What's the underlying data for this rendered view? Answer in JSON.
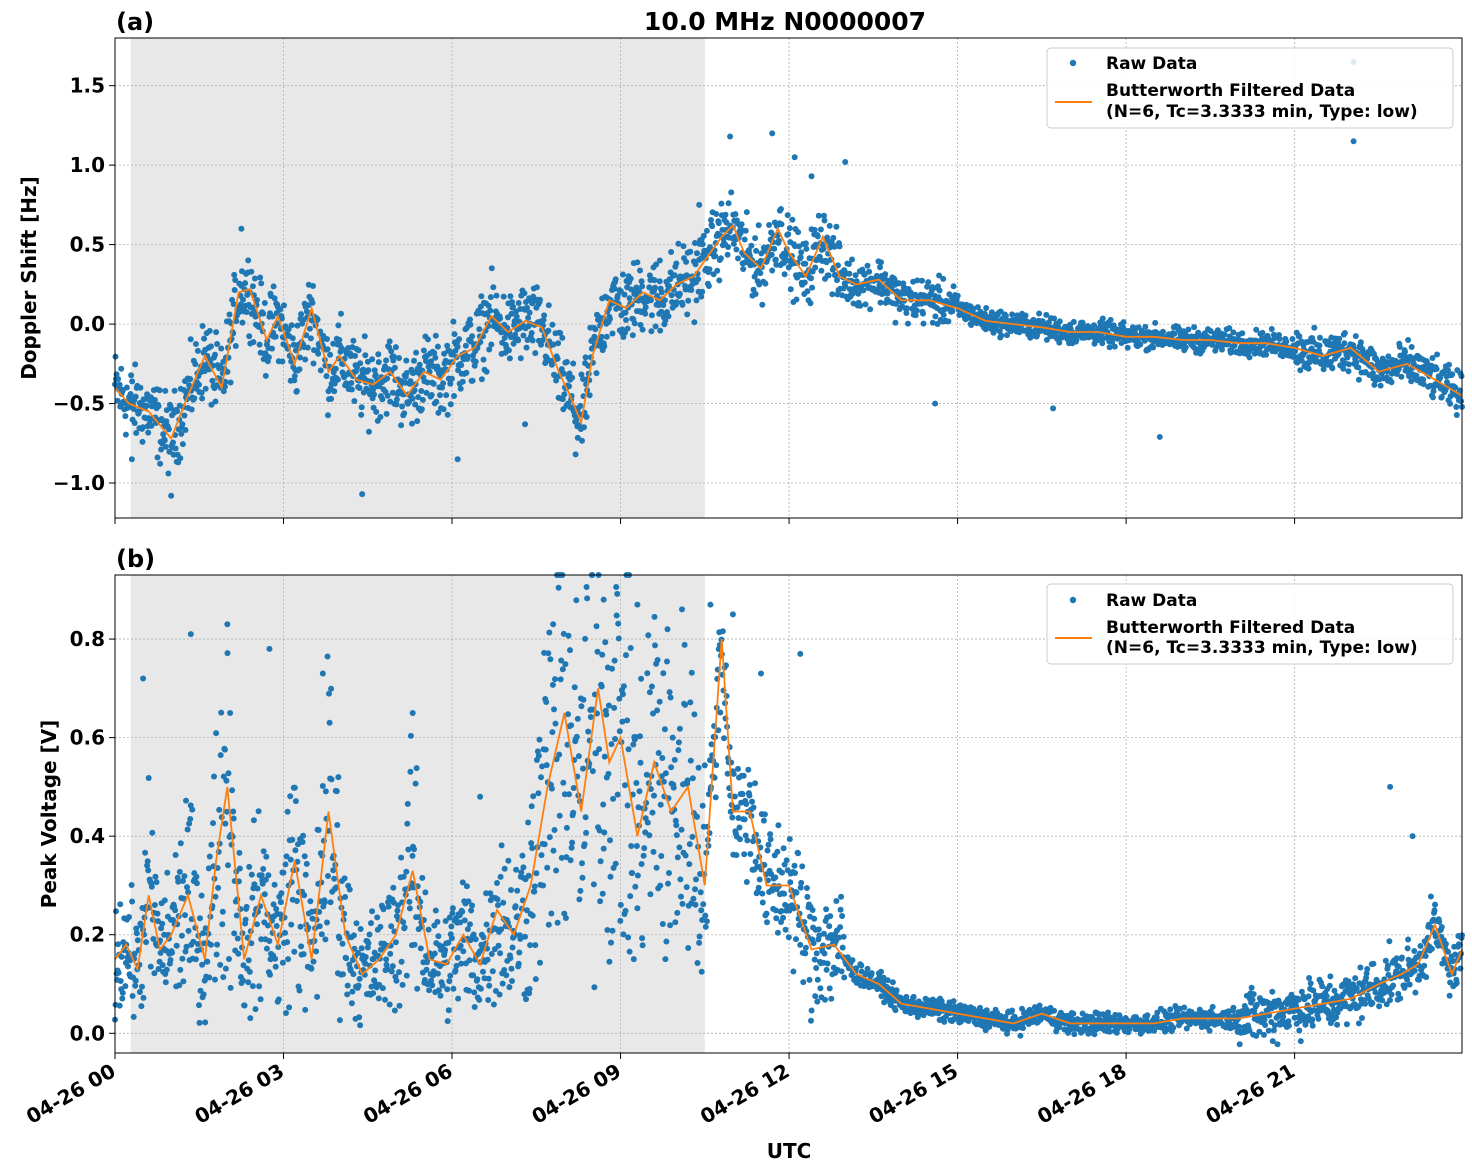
{
  "title": "10.0 MHz N0000007",
  "colors": {
    "raw": "#1f77b4",
    "filtered": "#ff7f0e",
    "night_shade": "#e8e8e8",
    "grid": "#b0b0b0"
  },
  "x_axis": {
    "label": "UTC",
    "range_hours": [
      0,
      23.98
    ],
    "ticks": [
      {
        "hour": 0,
        "label": "04-26 00"
      },
      {
        "hour": 3,
        "label": "04-26 03"
      },
      {
        "hour": 6,
        "label": "04-26 06"
      },
      {
        "hour": 9,
        "label": "04-26 09"
      },
      {
        "hour": 12,
        "label": "04-26 12"
      },
      {
        "hour": 15,
        "label": "04-26 15"
      },
      {
        "hour": 18,
        "label": "04-26 18"
      },
      {
        "hour": 21,
        "label": "04-26 21"
      }
    ]
  },
  "legend": {
    "raw": "Raw Data",
    "filtered_line1": "Butterworth Filtered Data",
    "filtered_line2": "(N=6, Tc=3.3333 min, Type: low)",
    "placement": "top-right"
  },
  "chart_data": [
    {
      "type": "scatter",
      "panel_label": "(a)",
      "ylabel": "Doppler Shift [Hz]",
      "ylim": [
        -1.22,
        1.8
      ],
      "yticks": [
        {
          "v": -1.0,
          "label": "−1.0"
        },
        {
          "v": -0.5,
          "label": "−0.5"
        },
        {
          "v": 0.0,
          "label": "0.0"
        },
        {
          "v": 0.5,
          "label": "0.5"
        },
        {
          "v": 1.0,
          "label": "1.0"
        },
        {
          "v": 1.5,
          "label": "1.5"
        }
      ],
      "shaded_region_hours": [
        0.28,
        10.5
      ],
      "grid": true,
      "series": [
        {
          "name": "Raw Data",
          "x": [
            0.3,
            1.0,
            2.25,
            4.4,
            6.1,
            7.3,
            8.2,
            9.7,
            10.4,
            10.95,
            11.7,
            12.1,
            12.4,
            13.0,
            14.6,
            16.7,
            18.6,
            22.05,
            22.05
          ],
          "y": [
            -0.85,
            -1.08,
            0.6,
            -1.07,
            -0.85,
            -0.63,
            -0.82,
            0.4,
            0.75,
            1.18,
            1.2,
            1.05,
            0.93,
            1.02,
            -0.5,
            -0.53,
            -0.71,
            1.65,
            1.15
          ]
        },
        {
          "name": "Butterworth Filtered Data",
          "x": [
            0.0,
            0.25,
            0.6,
            1.0,
            1.3,
            1.6,
            1.9,
            2.2,
            2.4,
            2.7,
            2.9,
            3.2,
            3.5,
            3.8,
            4.0,
            4.3,
            4.6,
            4.9,
            5.2,
            5.5,
            5.8,
            6.1,
            6.4,
            6.7,
            7.0,
            7.3,
            7.6,
            7.9,
            8.1,
            8.3,
            8.5,
            8.8,
            9.1,
            9.4,
            9.7,
            10.0,
            10.3,
            10.6,
            10.8,
            11.0,
            11.2,
            11.5,
            11.8,
            12.0,
            12.3,
            12.6,
            12.9,
            13.2,
            13.6,
            14.0,
            14.5,
            15.0,
            15.5,
            16.0,
            16.5,
            17.0,
            17.5,
            18.0,
            18.5,
            19.0,
            19.5,
            20.0,
            20.5,
            21.0,
            21.5,
            22.0,
            22.5,
            23.0,
            23.5,
            23.98
          ],
          "y": [
            -0.4,
            -0.5,
            -0.55,
            -0.72,
            -0.45,
            -0.2,
            -0.4,
            0.2,
            0.22,
            -0.1,
            0.05,
            -0.25,
            0.1,
            -0.3,
            -0.2,
            -0.35,
            -0.38,
            -0.3,
            -0.45,
            -0.3,
            -0.35,
            -0.2,
            -0.15,
            0.05,
            -0.05,
            0.02,
            -0.02,
            -0.3,
            -0.45,
            -0.62,
            -0.2,
            0.15,
            0.1,
            0.2,
            0.15,
            0.25,
            0.3,
            0.45,
            0.55,
            0.62,
            0.45,
            0.35,
            0.6,
            0.45,
            0.3,
            0.55,
            0.3,
            0.25,
            0.28,
            0.15,
            0.15,
            0.1,
            0.02,
            0.0,
            -0.02,
            -0.05,
            -0.05,
            -0.08,
            -0.08,
            -0.1,
            -0.1,
            -0.12,
            -0.12,
            -0.15,
            -0.2,
            -0.15,
            -0.3,
            -0.25,
            -0.35,
            -0.45
          ]
        }
      ]
    },
    {
      "type": "scatter",
      "panel_label": "(b)",
      "ylabel": "Peak Voltage [V]",
      "ylim": [
        -0.04,
        0.93
      ],
      "yticks": [
        {
          "v": 0.0,
          "label": "0.0"
        },
        {
          "v": 0.2,
          "label": "0.2"
        },
        {
          "v": 0.4,
          "label": "0.4"
        },
        {
          "v": 0.6,
          "label": "0.6"
        },
        {
          "v": 0.8,
          "label": "0.8"
        }
      ],
      "shaded_region_hours": [
        0.28,
        10.5
      ],
      "grid": true,
      "series": [
        {
          "name": "Raw Data",
          "x": [
            0.5,
            1.35,
            2.0,
            2.75,
            3.7,
            5.3,
            6.5,
            7.8,
            8.7,
            9.3,
            10.6,
            11.0,
            11.5,
            12.2,
            22.7,
            23.1
          ],
          "y": [
            0.72,
            0.81,
            0.83,
            0.78,
            0.73,
            0.65,
            0.48,
            0.83,
            0.88,
            0.87,
            0.87,
            0.85,
            0.73,
            0.77,
            0.5,
            0.4
          ]
        },
        {
          "name": "Butterworth Filtered Data",
          "x": [
            0.0,
            0.2,
            0.4,
            0.6,
            0.8,
            1.0,
            1.3,
            1.6,
            1.8,
            2.0,
            2.3,
            2.6,
            2.9,
            3.2,
            3.5,
            3.8,
            4.1,
            4.4,
            4.7,
            5.0,
            5.3,
            5.6,
            5.9,
            6.2,
            6.5,
            6.8,
            7.1,
            7.4,
            7.7,
            8.0,
            8.3,
            8.6,
            8.8,
            9.0,
            9.3,
            9.6,
            9.9,
            10.2,
            10.5,
            10.8,
            11.0,
            11.3,
            11.6,
            12.0,
            12.4,
            12.8,
            13.2,
            13.6,
            14.0,
            14.5,
            15.0,
            15.5,
            16.0,
            16.5,
            17.0,
            17.5,
            18.0,
            18.5,
            19.0,
            19.5,
            20.0,
            20.5,
            21.0,
            21.5,
            22.0,
            22.5,
            22.9,
            23.2,
            23.5,
            23.8,
            23.98
          ],
          "y": [
            0.15,
            0.18,
            0.13,
            0.28,
            0.17,
            0.2,
            0.28,
            0.15,
            0.35,
            0.5,
            0.15,
            0.28,
            0.18,
            0.35,
            0.15,
            0.45,
            0.2,
            0.12,
            0.15,
            0.2,
            0.33,
            0.15,
            0.14,
            0.2,
            0.14,
            0.25,
            0.2,
            0.3,
            0.5,
            0.65,
            0.45,
            0.7,
            0.55,
            0.6,
            0.4,
            0.55,
            0.45,
            0.5,
            0.3,
            0.8,
            0.45,
            0.45,
            0.3,
            0.3,
            0.17,
            0.18,
            0.12,
            0.1,
            0.06,
            0.05,
            0.04,
            0.03,
            0.02,
            0.04,
            0.02,
            0.02,
            0.02,
            0.02,
            0.03,
            0.03,
            0.03,
            0.04,
            0.05,
            0.06,
            0.07,
            0.1,
            0.12,
            0.14,
            0.22,
            0.12,
            0.17
          ]
        }
      ]
    }
  ]
}
